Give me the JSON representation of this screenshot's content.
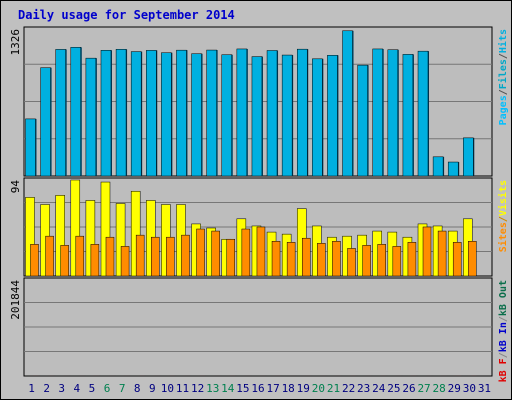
{
  "title": "Daily usage for September 2014",
  "colors": {
    "title": "#0000cc",
    "hits": "#00b0e0",
    "files": "#00a8c8",
    "pages": "#00bfff",
    "visits": "#ffff00",
    "sites": "#ff8c00",
    "kb": "#e00000",
    "kb_in": "#0000cc",
    "kb_out": "#0a6e4a",
    "weekend_label": "#00804f",
    "weekday_label": "#000080",
    "background": "#c0c0c0",
    "plot_bg": "#bdbdbd",
    "grid": "#777777"
  },
  "chart_data": [
    {
      "type": "bar",
      "panel": "hits",
      "ymax": 1326,
      "ymax_label": "1326",
      "legend": [
        "Pages",
        "Files",
        "Hits"
      ],
      "categories": [
        "1",
        "2",
        "3",
        "4",
        "5",
        "6",
        "7",
        "8",
        "9",
        "10",
        "11",
        "12",
        "13",
        "14",
        "15",
        "16",
        "17",
        "18",
        "19",
        "20",
        "21",
        "22",
        "23",
        "24",
        "25",
        "26",
        "27",
        "28",
        "29",
        "30",
        "31"
      ],
      "series": [
        {
          "name": "Hits",
          "values": [
            515,
            977,
            1142,
            1161,
            1063,
            1134,
            1143,
            1122,
            1133,
            1112,
            1135,
            1103,
            1136,
            1094,
            1146,
            1077,
            1132,
            1091,
            1144,
            1057,
            1089,
            1310,
            1000,
            1146,
            1139,
            1097,
            1126,
            173,
            126,
            344,
            null
          ]
        },
        {
          "name": "Files",
          "values": [
            515,
            977,
            1142,
            1161,
            1063,
            1134,
            1143,
            1122,
            1133,
            1112,
            1135,
            1103,
            1136,
            1094,
            1146,
            1077,
            1132,
            1091,
            1144,
            1057,
            1089,
            1310,
            1000,
            1146,
            1139,
            1097,
            1126,
            173,
            126,
            344,
            null
          ]
        }
      ]
    },
    {
      "type": "bar",
      "panel": "visits",
      "ymax": 94,
      "ymax_label": "94",
      "legend": [
        "Sites",
        "/",
        "Visits"
      ],
      "categories": [
        "1",
        "2",
        "3",
        "4",
        "5",
        "6",
        "7",
        "8",
        "9",
        "10",
        "11",
        "12",
        "13",
        "14",
        "15",
        "16",
        "17",
        "18",
        "19",
        "20",
        "21",
        "22",
        "23",
        "24",
        "25",
        "26",
        "27",
        "28",
        "29",
        "30",
        "31"
      ],
      "series": [
        {
          "name": "Visits",
          "values": [
            77,
            70,
            79,
            94,
            74,
            92,
            71,
            83,
            74,
            70,
            70,
            51,
            47,
            36,
            56,
            49,
            43,
            41,
            66,
            49,
            38,
            39,
            40,
            44,
            43,
            38,
            51,
            49,
            44,
            56,
            null
          ]
        },
        {
          "name": "Sites",
          "values": [
            31,
            39,
            30,
            39,
            31,
            38,
            29,
            40,
            38,
            38,
            40,
            46,
            44,
            36,
            46,
            48,
            34,
            33,
            37,
            32,
            34,
            27,
            30,
            31,
            29,
            33,
            48,
            44,
            33,
            34,
            null
          ]
        }
      ]
    },
    {
      "type": "bar",
      "panel": "kbytes",
      "ymax": 201844,
      "ymax_label": "201844",
      "legend": [
        "kB F",
        "/",
        "kB In",
        "/",
        "kB Out"
      ],
      "categories": [
        "1",
        "2",
        "3",
        "4",
        "5",
        "6",
        "7",
        "8",
        "9",
        "10",
        "11",
        "12",
        "13",
        "14",
        "15",
        "16",
        "17",
        "18",
        "19",
        "20",
        "21",
        "22",
        "23",
        "24",
        "25",
        "26",
        "27",
        "28",
        "29",
        "30",
        "31"
      ],
      "series": [
        {
          "name": "kB F",
          "values": [
            139,
            87,
            44,
            43,
            99,
            42,
            60,
            64,
            44,
            90,
            44,
            104,
            45,
            100,
            47,
            44,
            103,
            22,
            60,
            43,
            60,
            103,
            40,
            62,
            44,
            107,
            40,
            50,
            210,
            172,
            null
          ]
        },
        {
          "name": "kB Out",
          "values": [
            30,
            75,
            80,
            58,
            81,
            58,
            60,
            64,
            60,
            55,
            48,
            60,
            62,
            56,
            57,
            60,
            63,
            60,
            47,
            60,
            64,
            56,
            51,
            48,
            62,
            56,
            58,
            60,
            43,
            46,
            null
          ]
        }
      ]
    }
  ]
}
